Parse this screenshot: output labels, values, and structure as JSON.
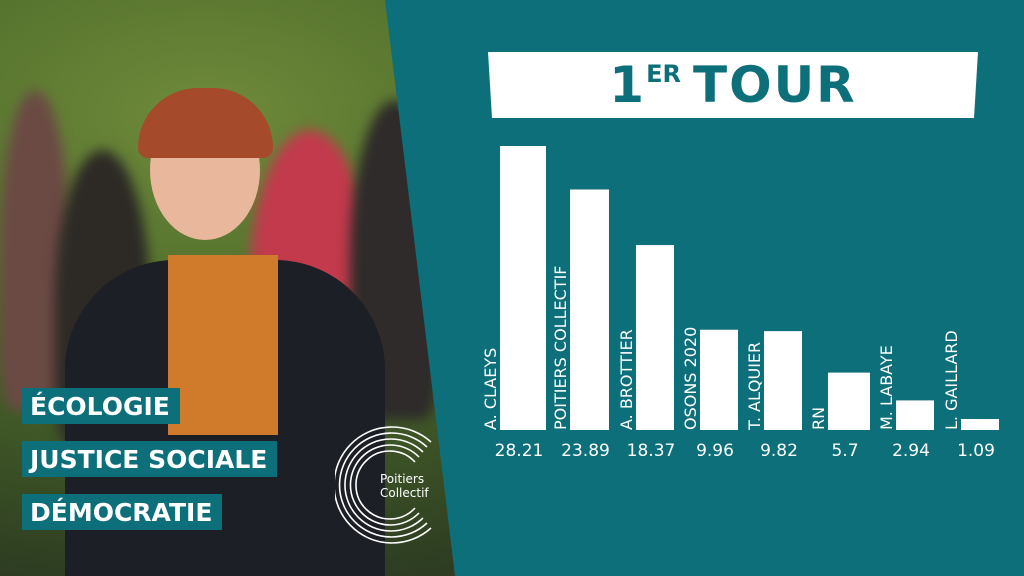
{
  "colors": {
    "teal": "#0c6f7a",
    "white": "#ffffff"
  },
  "header": {
    "title_main": "1",
    "title_sup": "ER",
    "title_word": "TOUR"
  },
  "taglines": [
    "ÉCOLOGIE",
    "JUSTICE SOCIALE",
    "DÉMOCRATIE"
  ],
  "logo": {
    "line1": "Poitiers",
    "line2": "Collectif",
    "icon": "poitiers-collectif-c-logo"
  },
  "chart_data": {
    "type": "bar",
    "title": "1ER TOUR",
    "categories": [
      "A. CLAEYS",
      "POITIERS COLLECTIF",
      "A. BROTTIER",
      "OSONS 2020",
      "T. ALQUIER",
      "RN",
      "M. LABAYE",
      "L. GAILLARD"
    ],
    "values": [
      28.21,
      23.89,
      18.37,
      9.96,
      9.82,
      5.7,
      2.94,
      1.09
    ],
    "value_labels": [
      "28.21",
      "23.89",
      "18.37",
      "9.96",
      "9.82",
      "5.7",
      "2.94",
      "1.09"
    ],
    "ylim": [
      0,
      28.21
    ],
    "grid": false,
    "legend": "none",
    "xlabel": "",
    "ylabel": ""
  }
}
